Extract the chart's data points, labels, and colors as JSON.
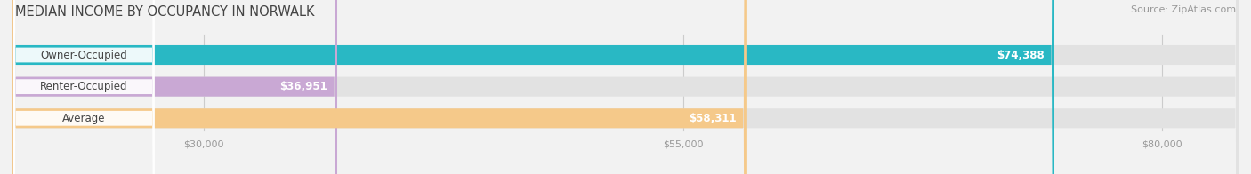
{
  "title": "MEDIAN INCOME BY OCCUPANCY IN NORWALK",
  "source": "Source: ZipAtlas.com",
  "categories": [
    "Owner-Occupied",
    "Renter-Occupied",
    "Average"
  ],
  "values": [
    74388,
    36951,
    58311
  ],
  "labels": [
    "$74,388",
    "$36,951",
    "$58,311"
  ],
  "bar_colors": [
    "#29b8c4",
    "#c9a8d4",
    "#f5c98a"
  ],
  "background_color": "#f2f2f2",
  "bar_bg_color": "#e2e2e2",
  "xlim": [
    20000,
    84000
  ],
  "data_min": 20000,
  "data_max": 84000,
  "xticks": [
    30000,
    55000,
    80000
  ],
  "xtick_labels": [
    "$30,000",
    "$55,000",
    "$80,000"
  ],
  "title_fontsize": 10.5,
  "source_fontsize": 8,
  "bar_label_fontsize": 8.5,
  "value_label_fontsize": 8.5,
  "bar_height": 0.62,
  "title_color": "#444444",
  "tick_color": "#999999",
  "label_bg_color": "#ffffff",
  "value_text_color_inside": "#ffffff",
  "value_text_color_outside": "#555555"
}
